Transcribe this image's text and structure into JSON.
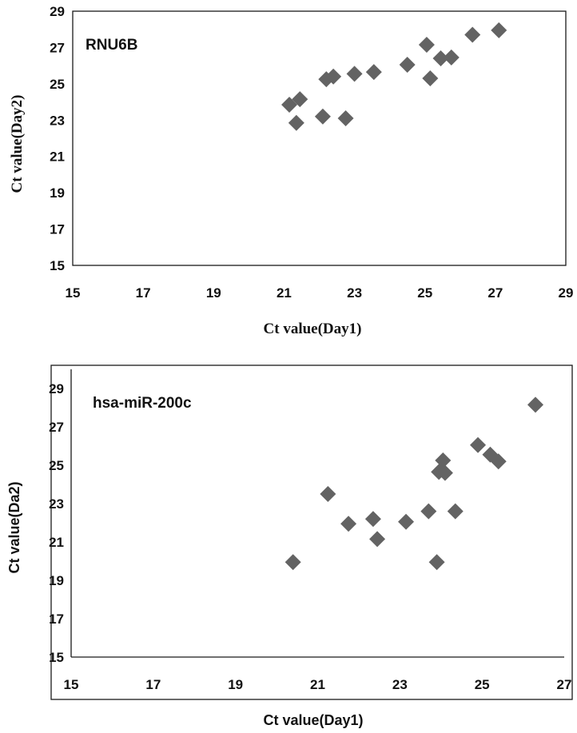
{
  "chart_data": [
    {
      "type": "scatter",
      "label": "RNU6B",
      "xlabel": "Ct value(Day1)",
      "ylabel": "Ct value(Day2)",
      "xlim": [
        15,
        29
      ],
      "ylim": [
        15,
        29
      ],
      "xticks": [
        15,
        17,
        19,
        21,
        23,
        25,
        27,
        29
      ],
      "yticks": [
        15,
        17,
        19,
        21,
        23,
        25,
        27,
        29
      ],
      "marker_color": "#636363",
      "points": [
        {
          "x": 21.15,
          "y": 23.85
        },
        {
          "x": 21.35,
          "y": 22.85
        },
        {
          "x": 21.45,
          "y": 24.15
        },
        {
          "x": 22.1,
          "y": 23.2
        },
        {
          "x": 22.2,
          "y": 25.25
        },
        {
          "x": 22.4,
          "y": 25.4
        },
        {
          "x": 22.75,
          "y": 23.1
        },
        {
          "x": 23.0,
          "y": 25.55
        },
        {
          "x": 23.55,
          "y": 25.65
        },
        {
          "x": 24.5,
          "y": 26.05
        },
        {
          "x": 25.05,
          "y": 27.15
        },
        {
          "x": 25.15,
          "y": 25.3
        },
        {
          "x": 25.45,
          "y": 26.4
        },
        {
          "x": 25.75,
          "y": 26.45
        },
        {
          "x": 26.35,
          "y": 27.7
        },
        {
          "x": 27.1,
          "y": 27.95
        }
      ]
    },
    {
      "type": "scatter",
      "label": "hsa-miR-200c",
      "xlabel": "Ct value(Day1)",
      "ylabel": "Ct value(Da2)",
      "xlim": [
        15,
        27
      ],
      "ylim": [
        15,
        30
      ],
      "xticks": [
        15,
        17,
        19,
        21,
        23,
        25,
        27
      ],
      "yticks": [
        15,
        17,
        19,
        21,
        23,
        25,
        27,
        29
      ],
      "marker_color": "#636363",
      "points": [
        {
          "x": 20.4,
          "y": 19.95
        },
        {
          "x": 21.25,
          "y": 23.5
        },
        {
          "x": 21.75,
          "y": 21.95
        },
        {
          "x": 22.35,
          "y": 22.2
        },
        {
          "x": 22.45,
          "y": 21.15
        },
        {
          "x": 23.15,
          "y": 22.05
        },
        {
          "x": 23.7,
          "y": 22.6
        },
        {
          "x": 23.9,
          "y": 19.95
        },
        {
          "x": 23.95,
          "y": 24.65
        },
        {
          "x": 24.05,
          "y": 25.25
        },
        {
          "x": 24.1,
          "y": 24.6
        },
        {
          "x": 24.35,
          "y": 22.6
        },
        {
          "x": 24.9,
          "y": 26.05
        },
        {
          "x": 25.2,
          "y": 25.55
        },
        {
          "x": 25.4,
          "y": 25.2
        },
        {
          "x": 26.3,
          "y": 28.15
        }
      ]
    }
  ]
}
